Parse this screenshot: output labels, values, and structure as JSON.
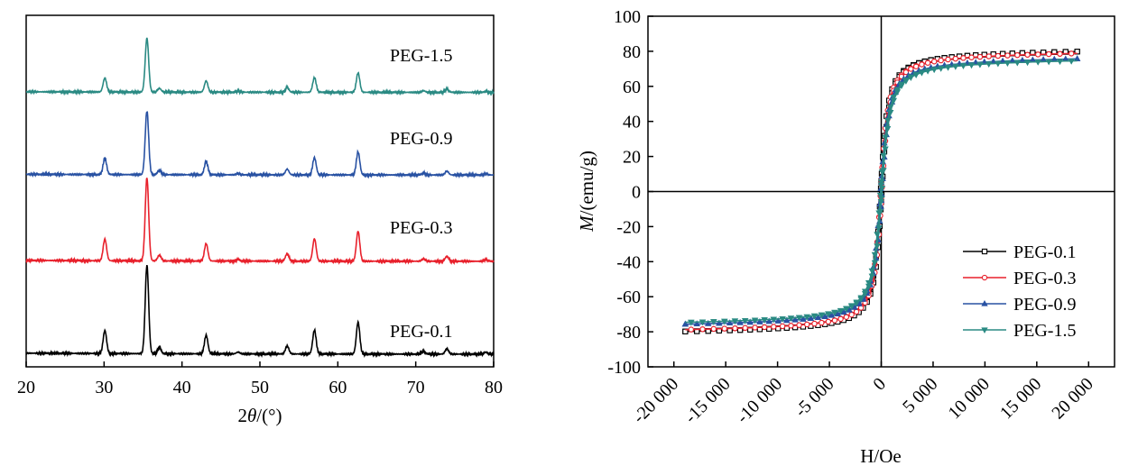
{
  "chart_data": [
    {
      "type": "line",
      "title": "",
      "xlabel_prefix": "2",
      "xlabel_var": "θ",
      "xlabel_suffix": "/(°)",
      "ylabel": "",
      "xlim": [
        20,
        80
      ],
      "xticks": [
        20,
        30,
        40,
        50,
        60,
        70,
        80
      ],
      "y_ticks_shown": false,
      "peaks": [
        {
          "x": 30.1,
          "rel": 0.26
        },
        {
          "x": 35.5,
          "rel": 1.0
        },
        {
          "x": 37.1,
          "rel": 0.07
        },
        {
          "x": 43.1,
          "rel": 0.21
        },
        {
          "x": 47.2,
          "rel": 0.02
        },
        {
          "x": 53.5,
          "rel": 0.09
        },
        {
          "x": 57.0,
          "rel": 0.27
        },
        {
          "x": 62.6,
          "rel": 0.36
        },
        {
          "x": 71.0,
          "rel": 0.03
        },
        {
          "x": 74.0,
          "rel": 0.06
        },
        {
          "x": 79.0,
          "rel": 0.02
        }
      ],
      "series": [
        {
          "name": "PEG-0.1",
          "color": "#000000",
          "baseline": 0.0,
          "scale": 1.0
        },
        {
          "name": "PEG-0.3",
          "color": "#e8212c",
          "baseline": 1.0,
          "scale": 0.94
        },
        {
          "name": "PEG-0.9",
          "color": "#2952a3",
          "baseline": 1.93,
          "scale": 0.72
        },
        {
          "name": "PEG-1.5",
          "color": "#2a8a83",
          "baseline": 2.82,
          "scale": 0.61
        }
      ]
    },
    {
      "type": "line",
      "title": "",
      "xlabel": "H/Oe",
      "ylabel_var": "M",
      "ylabel_suffix": "/(emu/g)",
      "xlim": [
        -22500,
        22500
      ],
      "ylim": [
        -100,
        100
      ],
      "xticks": [
        -20000,
        -15000,
        -10000,
        -5000,
        0,
        5000,
        10000,
        15000,
        20000
      ],
      "xtick_labels": [
        "-20 000",
        "-15 000",
        "-10 000",
        "-5 000",
        "0",
        "5 000",
        "10 000",
        "15 000",
        "20 000"
      ],
      "yticks": [
        -100,
        -80,
        -60,
        -40,
        -20,
        0,
        20,
        40,
        60,
        80,
        100
      ],
      "legend_position": "bottom-right",
      "series": [
        {
          "name": "PEG-0.1",
          "color": "#000000",
          "marker": "square",
          "ms": 80.0,
          "hk": 500
        },
        {
          "name": "PEG-0.3",
          "color": "#e8212c",
          "marker": "circle",
          "ms": 79.0,
          "hk": 520
        },
        {
          "name": "PEG-0.9",
          "color": "#2952a3",
          "marker": "triangle-up",
          "ms": 76.0,
          "hk": 560
        },
        {
          "name": "PEG-1.5",
          "color": "#2a8a83",
          "marker": "triangle-down",
          "ms": 75.0,
          "hk": 600
        }
      ]
    }
  ]
}
